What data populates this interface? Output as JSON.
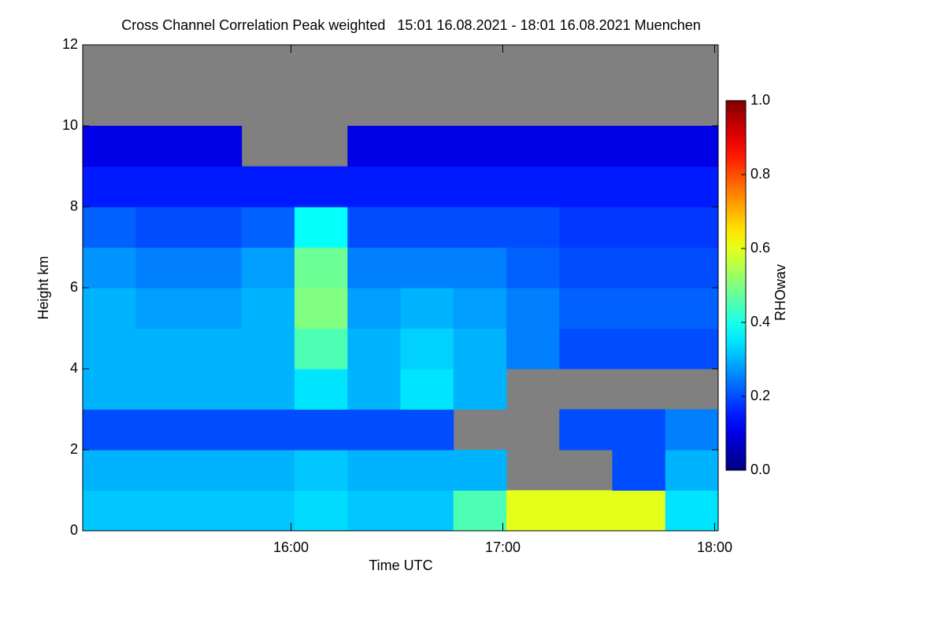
{
  "chart_data": {
    "type": "heatmap",
    "title": "Cross Channel Correlation Peak weighted   15:01 16.08.2021 - 18:01 16.08.2021 Muenchen",
    "x_label": "Time UTC",
    "y_label": "Height km",
    "colorbar_label": "RHOwav",
    "colormap": "jet",
    "nodata_color": "#808080",
    "x_bins": [
      15.0167,
      15.2667,
      15.5167,
      15.7667,
      16.0167,
      16.2667,
      16.5167,
      16.7667,
      17.0167,
      17.2667,
      17.5167,
      17.7667,
      18.0167
    ],
    "y_bins": [
      0,
      1,
      2,
      3,
      4,
      5,
      6,
      7,
      8,
      9,
      10,
      11,
      12
    ],
    "values": [
      [
        0.32,
        0.32,
        0.32,
        0.32,
        0.34,
        0.32,
        0.32,
        0.45,
        0.6,
        0.6,
        0.6,
        0.35
      ],
      [
        0.3,
        0.3,
        0.3,
        0.3,
        0.32,
        0.3,
        0.3,
        0.3,
        null,
        null,
        0.2,
        0.3
      ],
      [
        0.2,
        0.2,
        0.2,
        0.2,
        0.2,
        0.2,
        0.2,
        null,
        null,
        0.2,
        0.2,
        0.25
      ],
      [
        0.3,
        0.3,
        0.3,
        0.3,
        0.35,
        0.3,
        0.35,
        0.3,
        null,
        null,
        null,
        null
      ],
      [
        0.3,
        0.3,
        0.3,
        0.3,
        0.45,
        0.3,
        0.33,
        0.3,
        0.25,
        0.2,
        0.2,
        0.2
      ],
      [
        0.3,
        0.28,
        0.28,
        0.3,
        0.5,
        0.28,
        0.3,
        0.28,
        0.25,
        0.22,
        0.22,
        0.22
      ],
      [
        0.27,
        0.25,
        0.25,
        0.28,
        0.48,
        0.25,
        0.25,
        0.25,
        0.22,
        0.2,
        0.2,
        0.2
      ],
      [
        0.22,
        0.2,
        0.2,
        0.22,
        0.38,
        0.2,
        0.2,
        0.2,
        0.2,
        0.18,
        0.18,
        0.18
      ],
      [
        0.15,
        0.15,
        0.15,
        0.15,
        0.15,
        0.15,
        0.15,
        0.15,
        0.15,
        0.15,
        0.15,
        0.15
      ],
      [
        0.1,
        0.1,
        0.1,
        null,
        null,
        0.1,
        0.1,
        0.1,
        0.1,
        0.1,
        0.1,
        0.1
      ],
      [
        null,
        null,
        null,
        null,
        null,
        null,
        null,
        null,
        null,
        null,
        null,
        null
      ],
      [
        null,
        null,
        null,
        null,
        null,
        null,
        null,
        null,
        null,
        null,
        null,
        null
      ]
    ],
    "xlim": [
      15.0167,
      18.0167
    ],
    "xticks": [
      {
        "value": 16,
        "label": "16:00"
      },
      {
        "value": 17,
        "label": "17:00"
      },
      {
        "value": 18,
        "label": "18:00"
      }
    ],
    "ylim": [
      0,
      12
    ],
    "yticks": [
      0,
      2,
      4,
      6,
      8,
      10,
      12
    ],
    "zlim": [
      0,
      1
    ],
    "zticks": [
      {
        "value": 0,
        "label": "0.0"
      },
      {
        "value": 0.2,
        "label": "0.2"
      },
      {
        "value": 0.4,
        "label": "0.4"
      },
      {
        "value": 0.6,
        "label": "0.6"
      },
      {
        "value": 0.8,
        "label": "0.8"
      },
      {
        "value": 1,
        "label": "1.0"
      }
    ]
  }
}
